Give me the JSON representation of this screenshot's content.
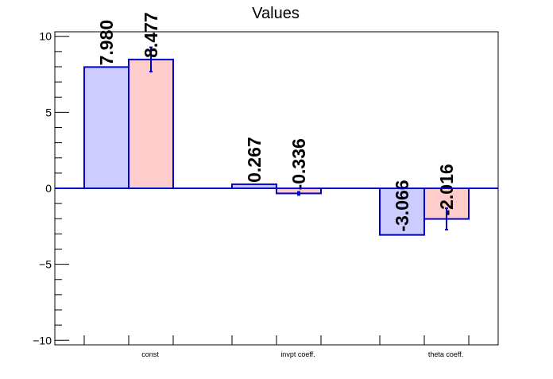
{
  "chart_data": {
    "type": "bar",
    "title": "Values",
    "xlabel": "",
    "ylabel": "",
    "ylim": [
      -10.3,
      10.3
    ],
    "yticks": [
      -10,
      -5,
      0,
      5,
      10
    ],
    "ytick_labels": [
      "−10",
      "−5",
      "0",
      "5",
      "10"
    ],
    "categories": [
      "const",
      "invpt coeff.",
      "theta coeff."
    ],
    "series": [
      {
        "values": [
          7.98,
          0.267,
          -3.066
        ],
        "labels": [
          "7.980",
          "0.267",
          "-3.066"
        ],
        "errors": [
          0,
          0,
          0
        ],
        "fill": "#ccccff",
        "stroke": "#0000cc"
      },
      {
        "values": [
          8.477,
          -0.336,
          -2.016
        ],
        "labels": [
          "8.477",
          "-0.336",
          "-2.016"
        ],
        "errors": [
          0.8,
          0.1,
          0.7
        ],
        "fill": "#ffcccc",
        "stroke": "#0000cc"
      }
    ],
    "grid": false,
    "legend": "none",
    "zero_line_color": "#0000cc"
  }
}
